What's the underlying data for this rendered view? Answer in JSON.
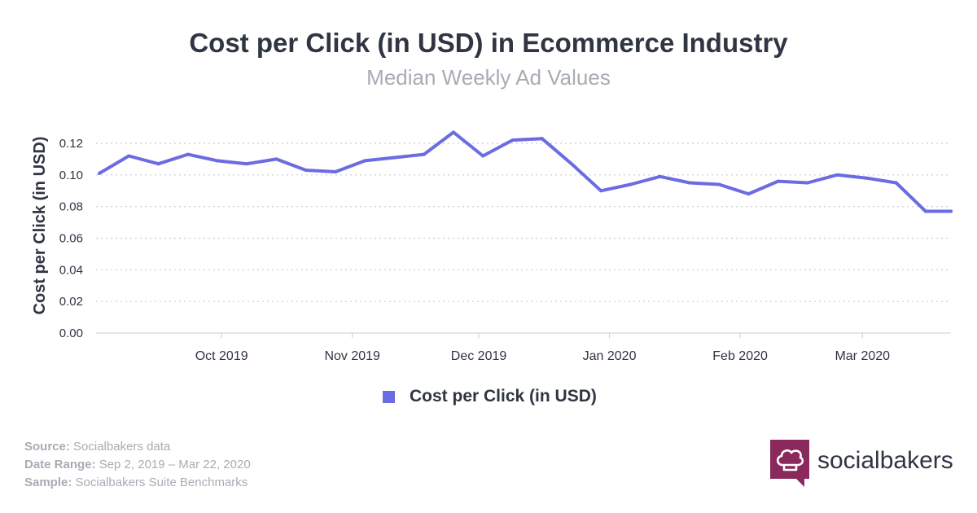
{
  "chart_data": {
    "type": "line",
    "title": "Cost per Click (in USD) in Ecommerce Industry",
    "subtitle": "Median Weekly Ad Values",
    "ylabel": "Cost per Click (in USD)",
    "xlabel": "",
    "ylim": [
      0,
      0.12
    ],
    "y_ticks": [
      "0.00",
      "0.02",
      "0.04",
      "0.06",
      "0.08",
      "0.10",
      "0.12"
    ],
    "x_tick_labels": [
      {
        "date": "2019-10-01",
        "label": "Oct 2019"
      },
      {
        "date": "2019-11-01",
        "label": "Nov 2019"
      },
      {
        "date": "2019-12-01",
        "label": "Dec 2019"
      },
      {
        "date": "2020-01-01",
        "label": "Jan 2020"
      },
      {
        "date": "2020-02-01",
        "label": "Feb 2020"
      },
      {
        "date": "2020-03-01",
        "label": "Mar 2020"
      }
    ],
    "x_range": [
      "2019-09-02",
      "2020-03-22"
    ],
    "grid": "horizontal dotted",
    "legend_position": "bottom-center",
    "series": [
      {
        "name": "Cost per Click (in USD)",
        "color": "#6b6be3",
        "x": [
          "2019-09-02",
          "2019-09-09",
          "2019-09-16",
          "2019-09-23",
          "2019-09-30",
          "2019-10-07",
          "2019-10-14",
          "2019-10-21",
          "2019-10-28",
          "2019-11-04",
          "2019-11-11",
          "2019-11-18",
          "2019-11-25",
          "2019-12-02",
          "2019-12-09",
          "2019-12-16",
          "2019-12-23",
          "2019-12-30",
          "2020-01-06",
          "2020-01-13",
          "2020-01-20",
          "2020-01-27",
          "2020-02-03",
          "2020-02-10",
          "2020-02-17",
          "2020-02-24",
          "2020-03-02",
          "2020-03-09",
          "2020-03-16",
          "2020-03-22"
        ],
        "values": [
          0.101,
          0.112,
          0.107,
          0.113,
          0.109,
          0.107,
          0.11,
          0.103,
          0.102,
          0.109,
          0.111,
          0.113,
          0.127,
          0.112,
          0.122,
          0.123,
          0.107,
          0.09,
          0.094,
          0.099,
          0.095,
          0.094,
          0.088,
          0.096,
          0.095,
          0.1,
          0.098,
          0.095,
          0.077,
          0.077
        ]
      }
    ]
  },
  "footer": {
    "source_label": "Source:",
    "source_value": "Socialbakers data",
    "range_label": "Date Range:",
    "range_value": "Sep 2, 2019 – Mar 22, 2020",
    "sample_label": "Sample:",
    "sample_value": "Socialbakers Suite Benchmarks"
  },
  "brand": {
    "name": "socialbakers",
    "logo_icon": "chef-hat-icon",
    "logo_color": "#8a2a5c"
  }
}
